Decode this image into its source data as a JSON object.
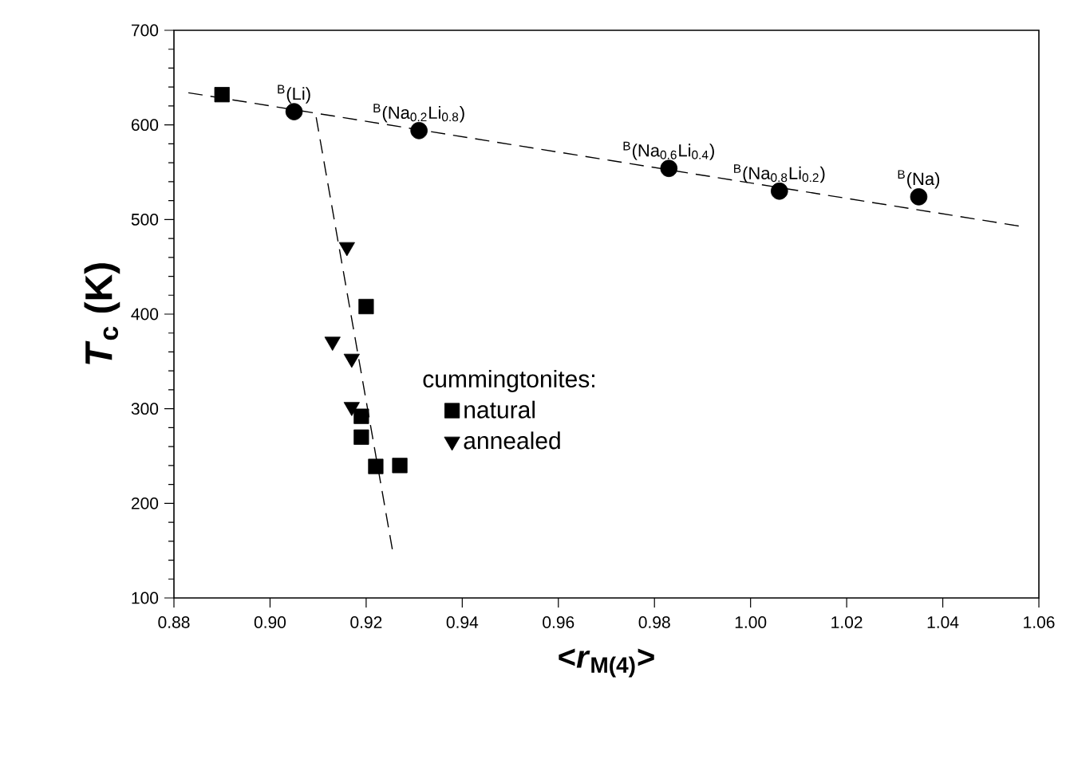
{
  "chart_data": {
    "type": "scatter",
    "xlabel": "<*r*$_{M(4)}$>",
    "ylabel": "*T*$_{c}$ (K)",
    "legend_title": "cummingtonites:",
    "legend": "bottom",
    "xlim": [
      0.88,
      1.06
    ],
    "ylim": [
      100,
      700
    ],
    "xticks": [
      {
        "value": 0.88,
        "label": "0.88"
      },
      {
        "value": 0.9,
        "label": "0.90"
      },
      {
        "value": 0.92,
        "label": "0.92"
      },
      {
        "value": 0.94,
        "label": "0.94"
      },
      {
        "value": 0.96,
        "label": "0.96"
      },
      {
        "value": 0.98,
        "label": "0.98"
      },
      {
        "value": 1.0,
        "label": "1.00"
      },
      {
        "value": 1.02,
        "label": "1.02"
      },
      {
        "value": 1.04,
        "label": "1.04"
      },
      {
        "value": 1.06,
        "label": "1.06"
      }
    ],
    "yticks": [
      100,
      200,
      300,
      400,
      500,
      600,
      700
    ],
    "series": [
      {
        "type": "line",
        "color": "#000000",
        "line_style": "dashed",
        "marker": "none",
        "x": [
          0.883,
          1.056
        ],
        "values": [
          634,
          493
        ]
      },
      {
        "type": "line",
        "color": "#000000",
        "line_style": "dashed",
        "marker": "none",
        "x": [
          0.9096,
          0.9255
        ],
        "values": [
          608,
          150
        ]
      },
      {
        "name": "natural",
        "color": "#000000",
        "marker": "square",
        "x": [
          0.89,
          0.92,
          0.919,
          0.919,
          0.922,
          0.927
        ],
        "values": [
          632,
          408,
          292,
          270,
          239,
          240
        ]
      },
      {
        "name": "annealed",
        "color": "#000000",
        "marker": "triangle",
        "x": [
          0.916,
          0.913,
          0.917,
          0.917
        ],
        "values": [
          471,
          371,
          353,
          302
        ]
      },
      {
        "color": "#000000",
        "marker": "circle",
        "x": [
          0.905,
          0.931,
          0.983,
          1.006,
          1.035
        ],
        "values": [
          614,
          594,
          554,
          530,
          524
        ]
      }
    ],
    "annotations": [
      {
        "text": "$^{B}$(Li)",
        "x": 0.905,
        "y": 614
      },
      {
        "text": "$^{B}$(Na$_{0.2}$Li$_{0.8}$)",
        "x": 0.931,
        "y": 594
      },
      {
        "text": "$^{B}$(Na$_{0.6}$Li$_{0.4}$)",
        "x": 0.983,
        "y": 554
      },
      {
        "text": "$^{B}$(Na$_{0.8}$Li$_{0.2}$)",
        "x": 1.006,
        "y": 530
      },
      {
        "text": "$^{B}$(Na)",
        "x": 1.035,
        "y": 524
      }
    ]
  }
}
